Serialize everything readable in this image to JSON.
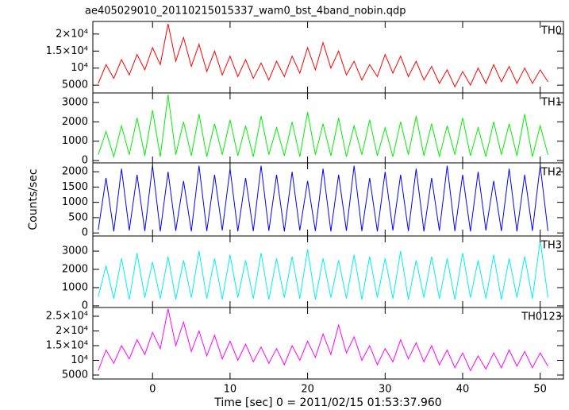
{
  "chart_data": [
    {
      "type": "line",
      "title": "ae405029010_20110215015337_wam0_bst_4band_nobin.qdp",
      "label": "TH0",
      "color": "#ff0000",
      "x": [
        -7,
        -6,
        -5,
        -4,
        -3,
        -2,
        -1,
        0,
        1,
        2,
        3,
        4,
        5,
        6,
        7,
        8,
        9,
        10,
        11,
        12,
        13,
        14,
        15,
        16,
        17,
        18,
        19,
        20,
        21,
        22,
        23,
        24,
        25,
        26,
        27,
        28,
        29,
        30,
        31,
        32,
        33,
        34,
        35,
        36,
        37,
        38,
        39,
        40,
        41,
        42,
        43,
        44,
        45,
        46,
        47,
        48,
        49,
        50,
        51
      ],
      "values": [
        5500,
        11000,
        7000,
        12500,
        8000,
        14000,
        9500,
        16000,
        11000,
        23000,
        12000,
        19000,
        10500,
        17000,
        9000,
        15000,
        8000,
        13500,
        7500,
        12500,
        7000,
        11500,
        6500,
        12000,
        7500,
        13500,
        8500,
        16000,
        9500,
        17500,
        10000,
        15000,
        8000,
        12000,
        6500,
        11000,
        7500,
        14000,
        8500,
        13500,
        7500,
        12000,
        6500,
        10500,
        5500,
        9500,
        4500,
        9000,
        5000,
        10000,
        5500,
        11000,
        6000,
        10500,
        5500,
        10000,
        5500,
        9500,
        6000
      ],
      "xlim": [
        -7.7,
        53
      ],
      "xticks": [
        0,
        10,
        20,
        30,
        40,
        50
      ],
      "ylim": [
        2700,
        23700
      ],
      "yticks": [
        5000,
        {
          "value": 10000,
          "label": "10⁴"
        },
        {
          "value": 15000,
          "label": "1.5×10⁴"
        },
        {
          "value": 20000,
          "label": "2×10⁴"
        }
      ]
    },
    {
      "type": "line",
      "label": "TH1",
      "color": "#00ee00",
      "x": [
        -7,
        -6,
        -5,
        -4,
        -3,
        -2,
        -1,
        0,
        1,
        2,
        3,
        4,
        5,
        6,
        7,
        8,
        9,
        10,
        11,
        12,
        13,
        14,
        15,
        16,
        17,
        18,
        19,
        20,
        21,
        22,
        23,
        24,
        25,
        26,
        27,
        28,
        29,
        30,
        31,
        32,
        33,
        34,
        35,
        36,
        37,
        38,
        39,
        40,
        41,
        42,
        43,
        44,
        45,
        46,
        47,
        48,
        49,
        50,
        51
      ],
      "values": [
        300,
        1500,
        200,
        1800,
        300,
        2200,
        250,
        2600,
        200,
        3400,
        300,
        2000,
        250,
        2400,
        200,
        1900,
        300,
        2100,
        250,
        1800,
        200,
        2300,
        300,
        1700,
        250,
        2000,
        200,
        2500,
        300,
        1900,
        250,
        2200,
        200,
        1800,
        300,
        2100,
        250,
        1700,
        200,
        2000,
        300,
        2300,
        250,
        1900,
        200,
        1800,
        300,
        2200,
        250,
        1700,
        200,
        2000,
        300,
        1900,
        250,
        2400,
        200,
        1800,
        300
      ],
      "xlim": [
        -7.7,
        53
      ],
      "xticks": [
        0,
        10,
        20,
        30,
        40,
        50
      ],
      "ylim": [
        -120,
        3490
      ],
      "yticks": [
        0,
        1000,
        2000,
        3000
      ]
    },
    {
      "type": "line",
      "label": "TH2",
      "color": "#0000ff",
      "ylabel": "Counts/sec",
      "x": [
        -7,
        -6,
        -5,
        -4,
        -3,
        -2,
        -1,
        0,
        1,
        2,
        3,
        4,
        5,
        6,
        7,
        8,
        9,
        10,
        11,
        12,
        13,
        14,
        15,
        16,
        17,
        18,
        19,
        20,
        21,
        22,
        23,
        24,
        25,
        26,
        27,
        28,
        29,
        30,
        31,
        32,
        33,
        34,
        35,
        36,
        37,
        38,
        39,
        40,
        41,
        42,
        43,
        44,
        45,
        46,
        47,
        48,
        49,
        50,
        51
      ],
      "values": [
        100,
        1800,
        50,
        2100,
        80,
        1900,
        60,
        2200,
        50,
        2000,
        70,
        1700,
        50,
        2200,
        60,
        1900,
        80,
        2100,
        50,
        1800,
        60,
        2200,
        70,
        1900,
        50,
        2000,
        80,
        1700,
        60,
        2100,
        50,
        1900,
        70,
        2200,
        60,
        1800,
        50,
        2000,
        80,
        1900,
        60,
        2100,
        50,
        1800,
        70,
        2200,
        60,
        1900,
        50,
        2000,
        80,
        1700,
        60,
        2100,
        50,
        1900,
        70,
        2200,
        60
      ],
      "xlim": [
        -7.7,
        53
      ],
      "xticks": [
        0,
        10,
        20,
        30,
        40,
        50
      ],
      "ylim": [
        -100,
        2290
      ],
      "yticks": [
        0,
        500,
        1000,
        1500,
        2000
      ]
    },
    {
      "type": "line",
      "label": "TH3",
      "color": "#00eeee",
      "x": [
        -7,
        -6,
        -5,
        -4,
        -3,
        -2,
        -1,
        0,
        1,
        2,
        3,
        4,
        5,
        6,
        7,
        8,
        9,
        10,
        11,
        12,
        13,
        14,
        15,
        16,
        17,
        18,
        19,
        20,
        21,
        22,
        23,
        24,
        25,
        26,
        27,
        28,
        29,
        30,
        31,
        32,
        33,
        34,
        35,
        36,
        37,
        38,
        39,
        40,
        41,
        42,
        43,
        44,
        45,
        46,
        47,
        48,
        49,
        50,
        51
      ],
      "values": [
        500,
        2200,
        400,
        2600,
        350,
        2900,
        450,
        2400,
        400,
        2700,
        350,
        2500,
        450,
        3000,
        400,
        2600,
        350,
        2800,
        450,
        2500,
        400,
        2900,
        350,
        2600,
        450,
        2700,
        400,
        3100,
        350,
        2600,
        450,
        2500,
        400,
        2800,
        350,
        2700,
        450,
        2600,
        400,
        3000,
        350,
        2500,
        450,
        2700,
        400,
        2600,
        350,
        2900,
        450,
        2500,
        400,
        2800,
        350,
        2600,
        450,
        2700,
        400,
        3600,
        450
      ],
      "xlim": [
        -7.7,
        53
      ],
      "xticks": [
        0,
        10,
        20,
        30,
        40,
        50
      ],
      "ylim": [
        -90,
        3830
      ],
      "yticks": [
        0,
        1000,
        2000,
        3000
      ]
    },
    {
      "type": "line",
      "label": "TH0123",
      "color": "#ff00ff",
      "xlabel": "Time [sec] 0 = 2011/02/15 01:53:37.960",
      "x": [
        -7,
        -6,
        -5,
        -4,
        -3,
        -2,
        -1,
        0,
        1,
        2,
        3,
        4,
        5,
        6,
        7,
        8,
        9,
        10,
        11,
        12,
        13,
        14,
        15,
        16,
        17,
        18,
        19,
        20,
        21,
        22,
        23,
        24,
        25,
        26,
        27,
        28,
        29,
        30,
        31,
        32,
        33,
        34,
        35,
        36,
        37,
        38,
        39,
        40,
        41,
        42,
        43,
        44,
        45,
        46,
        47,
        48,
        49,
        50,
        51
      ],
      "values": [
        6500,
        13500,
        9000,
        15000,
        10500,
        17000,
        12000,
        19500,
        14000,
        27500,
        15000,
        23000,
        13000,
        20000,
        11500,
        18500,
        10500,
        16500,
        10000,
        15500,
        9500,
        14500,
        9000,
        14000,
        8500,
        15000,
        10000,
        16500,
        11000,
        19000,
        12000,
        22000,
        12500,
        18000,
        10000,
        15000,
        8500,
        14000,
        9500,
        17000,
        10500,
        16000,
        9500,
        15000,
        8500,
        13500,
        7500,
        12500,
        6500,
        11500,
        7000,
        12500,
        7500,
        13500,
        8000,
        13000,
        7500,
        12500,
        8000
      ],
      "xlim": [
        -7.7,
        53
      ],
      "xticks": [
        0,
        10,
        20,
        30,
        40,
        50
      ],
      "ylim": [
        3650,
        27970
      ],
      "yticks": [
        5000,
        {
          "value": 10000,
          "label": "10⁴"
        },
        {
          "value": 15000,
          "label": "1.5×10⁴"
        },
        {
          "value": 20000,
          "label": "2×10⁴"
        },
        {
          "value": 25000,
          "label": "2.5×10⁴"
        }
      ]
    }
  ]
}
